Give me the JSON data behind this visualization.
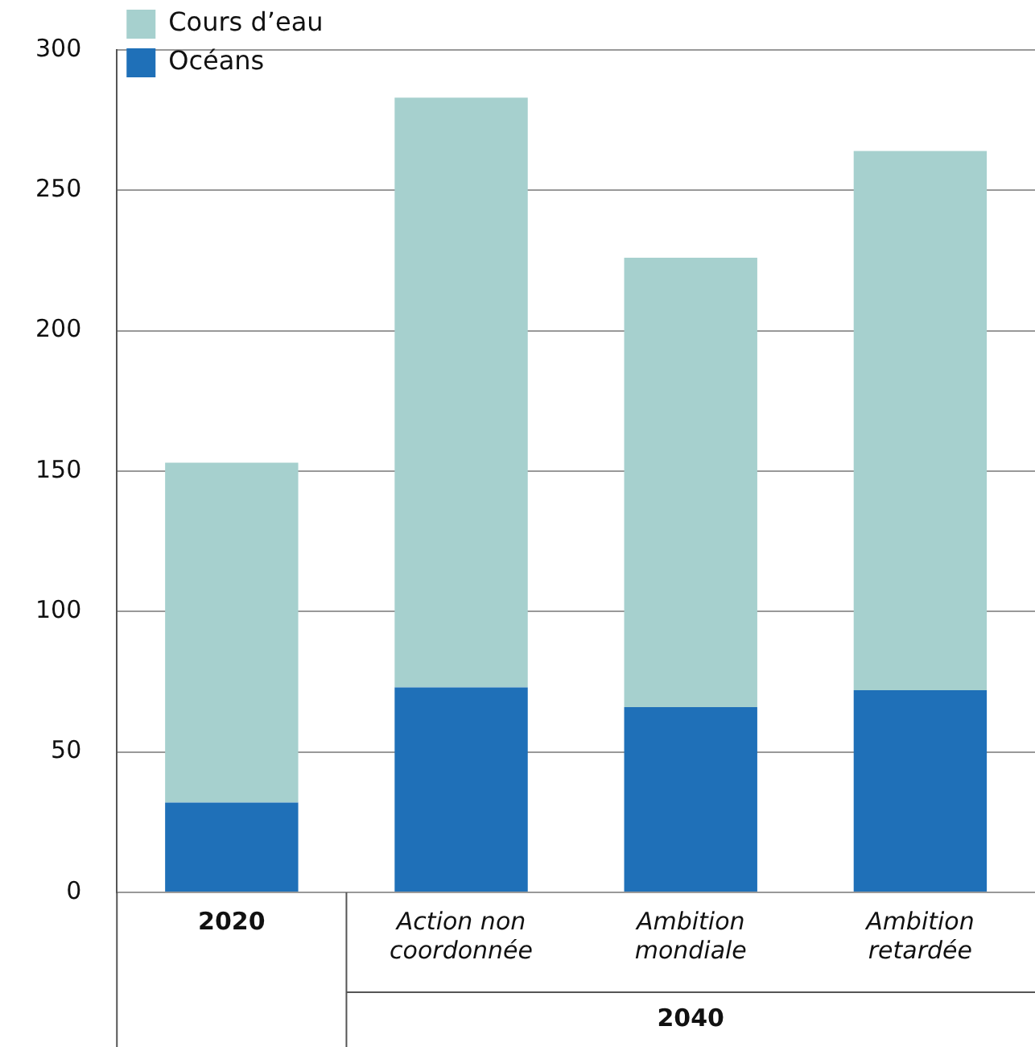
{
  "chart_data": {
    "type": "bar",
    "stacked": true,
    "categories": [
      "2020",
      "Action non coordonnée",
      "Ambition mondiale",
      "Ambition retardée"
    ],
    "series": [
      {
        "name": "Océans",
        "color": "#1f70b8",
        "values": [
          32,
          73,
          66,
          72
        ]
      },
      {
        "name": "Cours d’eau",
        "color": "#a6d0ce",
        "values": [
          121,
          210,
          160,
          192
        ]
      }
    ],
    "ylim": [
      0,
      300
    ],
    "yticks": [
      0,
      50,
      100,
      150,
      200,
      250,
      300
    ],
    "grid": "y",
    "legend": "top left",
    "annotations": [
      "2040"
    ]
  }
}
